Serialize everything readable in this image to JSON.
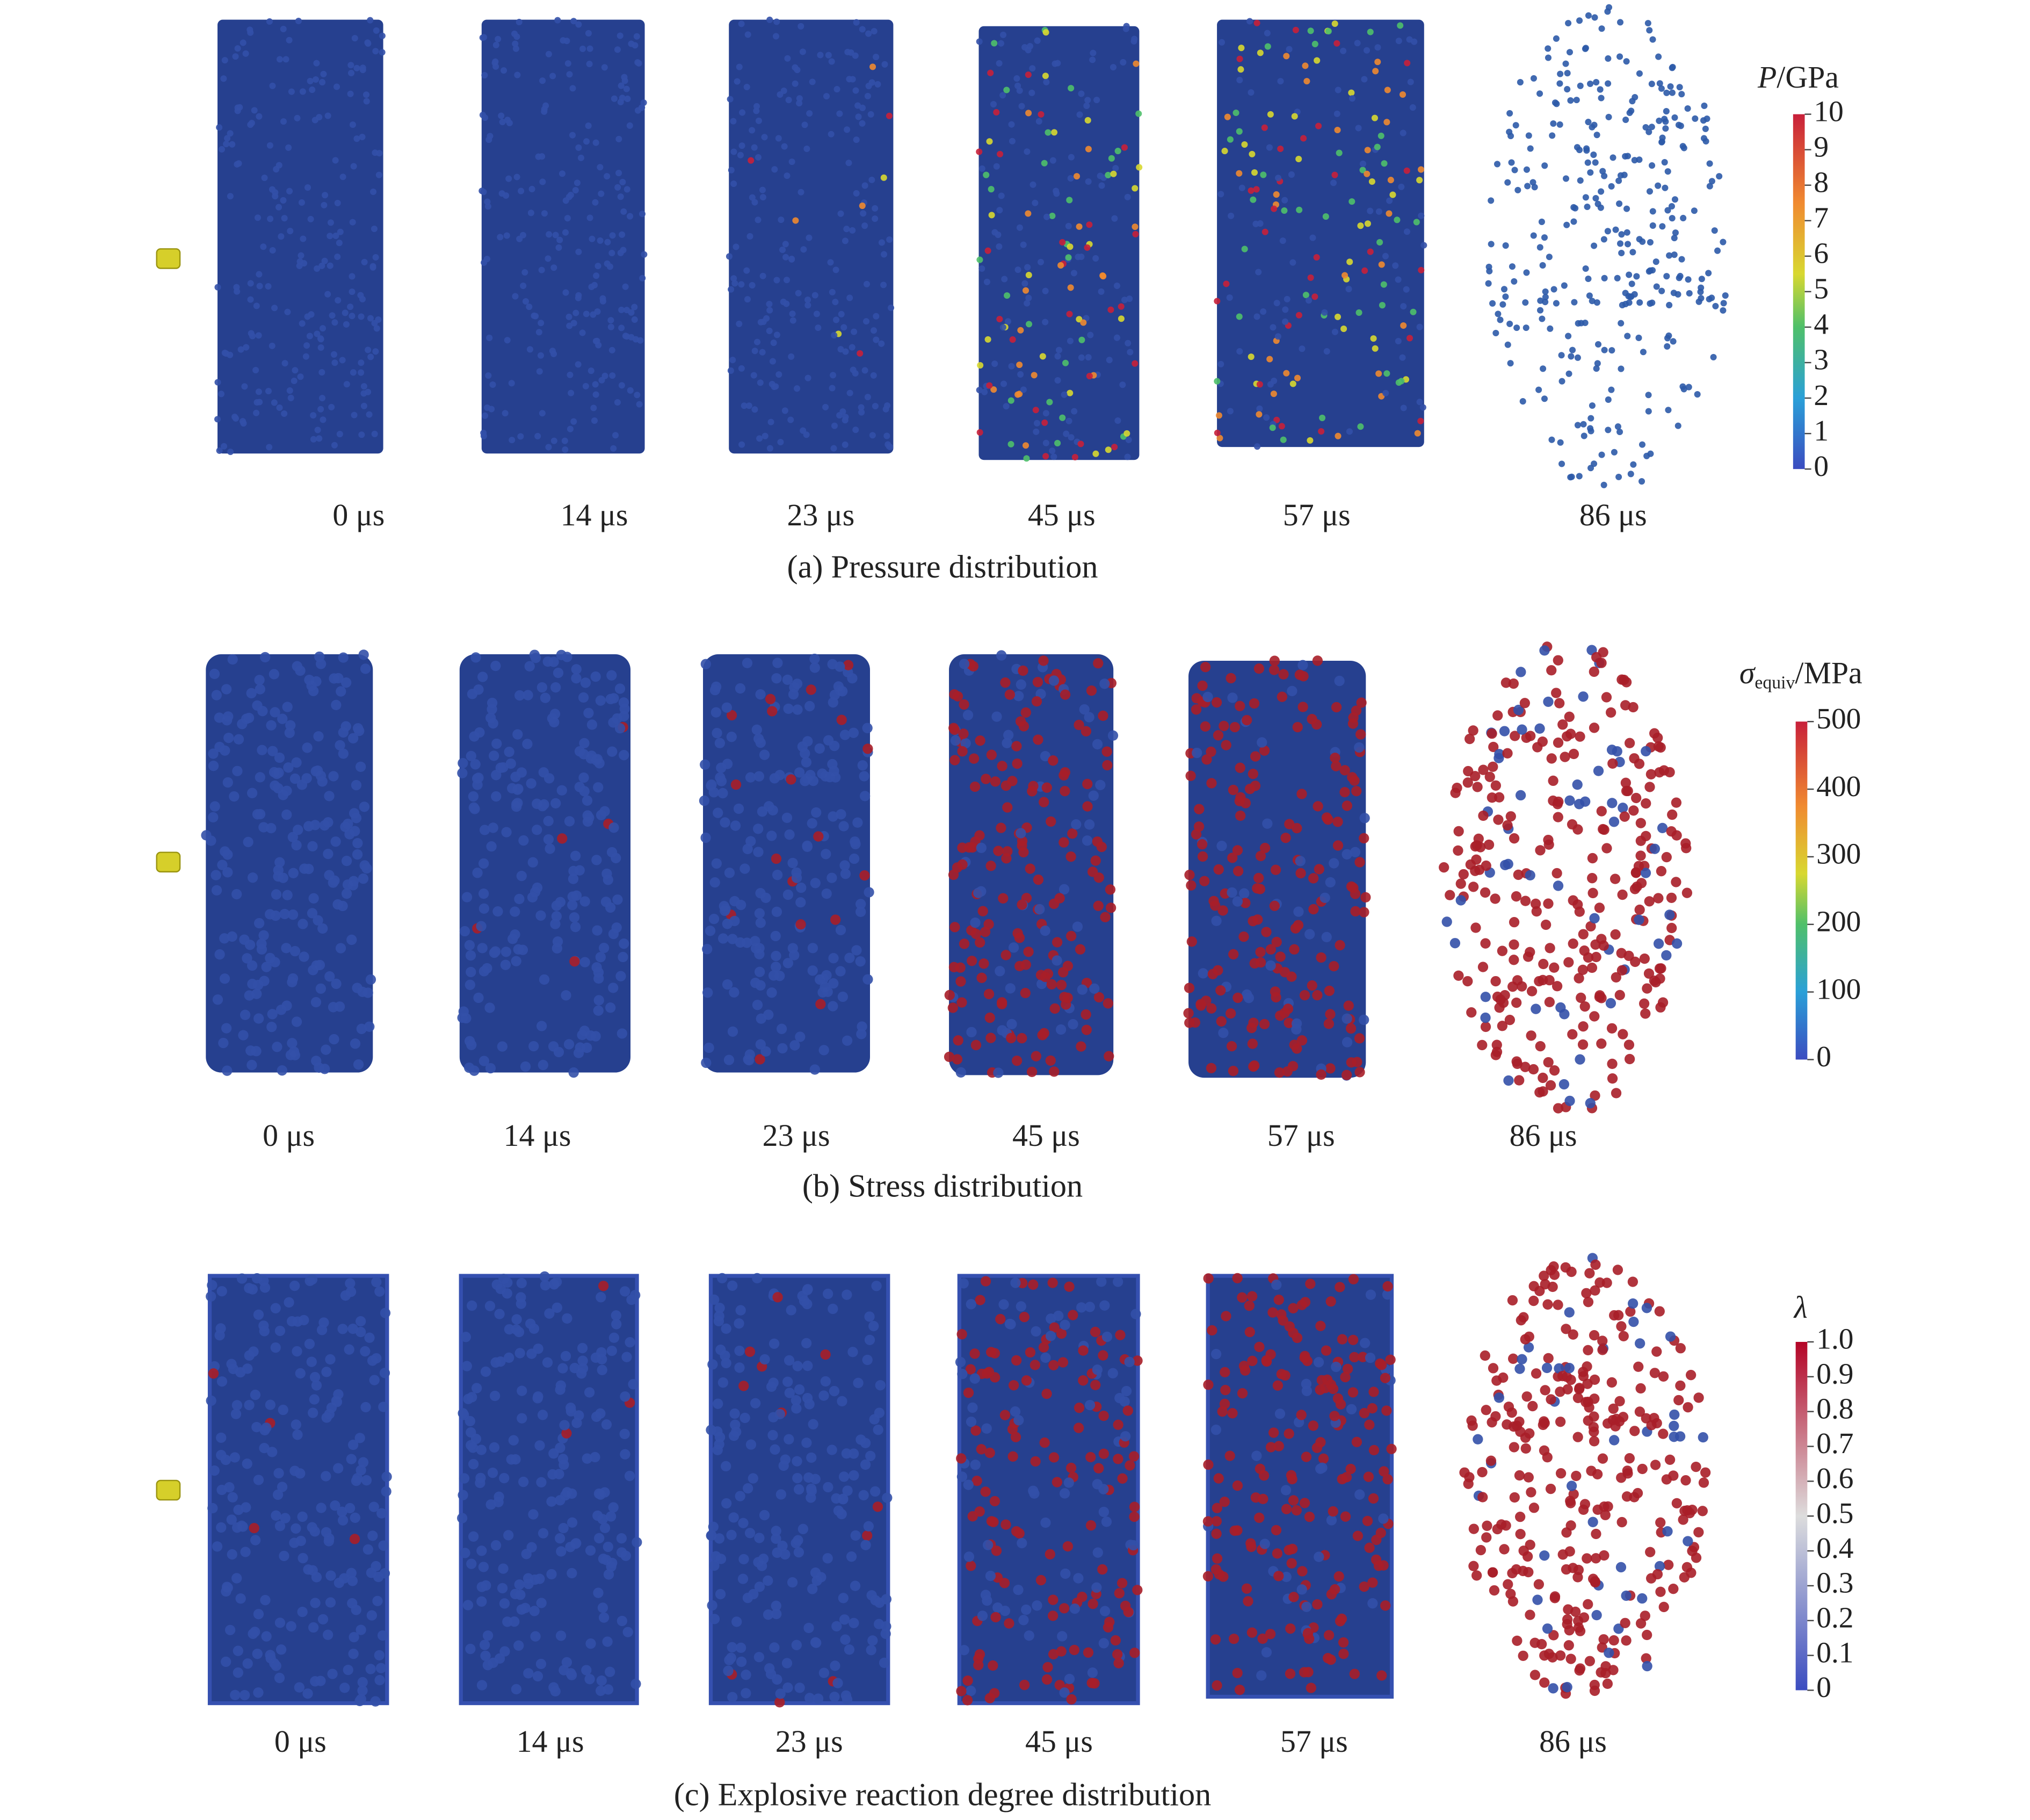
{
  "panels": [
    {
      "times": [
        "0 μs",
        "14 μs",
        "23 μs",
        "45 μs",
        "57 μs",
        "86 μs"
      ],
      "caption": "(a) Pressure distribution",
      "colorbar": {
        "symbol": "P",
        "unit": "/GPa",
        "ticks": [
          "10",
          "9",
          "8",
          "7",
          "6",
          "5",
          "4",
          "3",
          "2",
          "1",
          "0"
        ]
      }
    },
    {
      "times": [
        "0 μs",
        "14 μs",
        "23 μs",
        "45 μs",
        "57 μs",
        "86 μs"
      ],
      "caption": "(b) Stress distribution",
      "colorbar": {
        "symbol": "σ",
        "subscript": "equiv",
        "unit": "/MPa",
        "ticks": [
          "500",
          "400",
          "300",
          "200",
          "100",
          "0"
        ]
      }
    },
    {
      "times": [
        "0 μs",
        "14 μs",
        "23 μs",
        "45 μs",
        "57 μs",
        "86 μs"
      ],
      "caption": "(c) Explosive reaction degree distribution",
      "colorbar": {
        "symbol": "λ",
        "ticks": [
          "1.0",
          "0.9",
          "0.8",
          "0.7",
          "0.6",
          "0.5",
          "0.4",
          "0.3",
          "0.2",
          "0.1",
          "0"
        ]
      }
    }
  ]
}
